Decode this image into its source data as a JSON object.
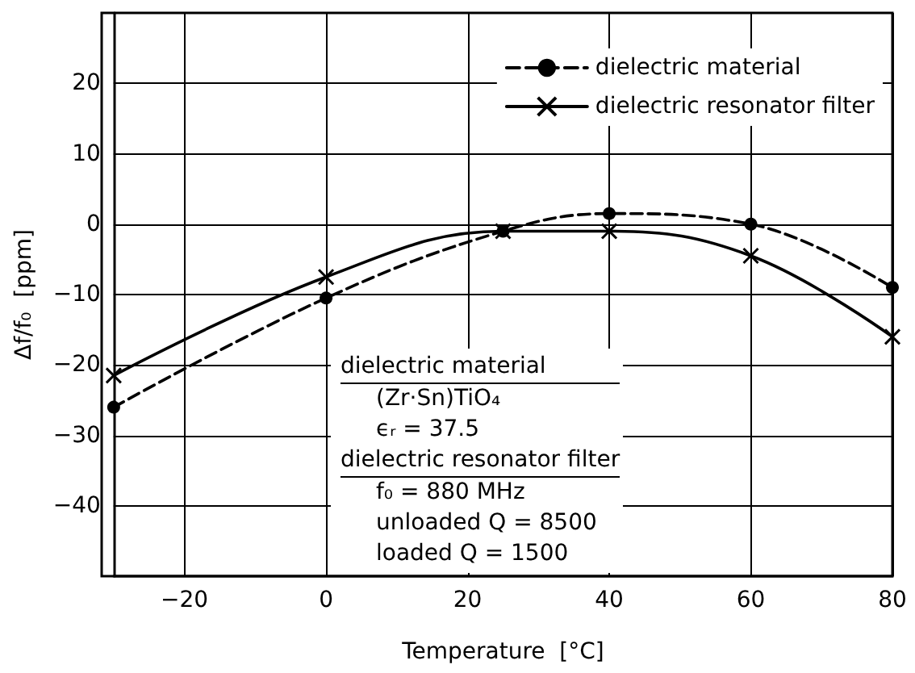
{
  "chart_data": {
    "type": "line",
    "xlabel": "Temperature  [°C]",
    "ylabel": "Δf/f₀  [ppm]",
    "xlim": [
      -30,
      80
    ],
    "xticks": [
      -20,
      0,
      20,
      40,
      60,
      80
    ],
    "ylim": [
      -50,
      30
    ],
    "yticks": [
      -40,
      -30,
      -20,
      -10,
      0,
      10,
      20
    ],
    "grid": true,
    "legend": "top right",
    "series": [
      {
        "name": "dielectric material",
        "color": "#000000",
        "marker": "circle",
        "line_style": "dashed",
        "x": [
          -30,
          0,
          25,
          40,
          60,
          80
        ],
        "values": [
          -26,
          -10.5,
          -1,
          1.5,
          0,
          -9
        ]
      },
      {
        "name": "dielectric resonator filter",
        "color": "#000000",
        "marker": "cross",
        "line_style": "solid",
        "x": [
          -30,
          0,
          25,
          40,
          60,
          80
        ],
        "values": [
          -21.5,
          -7.5,
          -1,
          -1,
          -4.5,
          -16
        ]
      }
    ],
    "annotations": [
      "dielectric material",
      "(Zr·Sn)TiO₄",
      "ϵᵣ = 37.5",
      "dielectric resonator filter",
      "f₀ = 880 MHz",
      "unloaded  Q = 8500",
      "loaded  Q = 1500"
    ]
  }
}
